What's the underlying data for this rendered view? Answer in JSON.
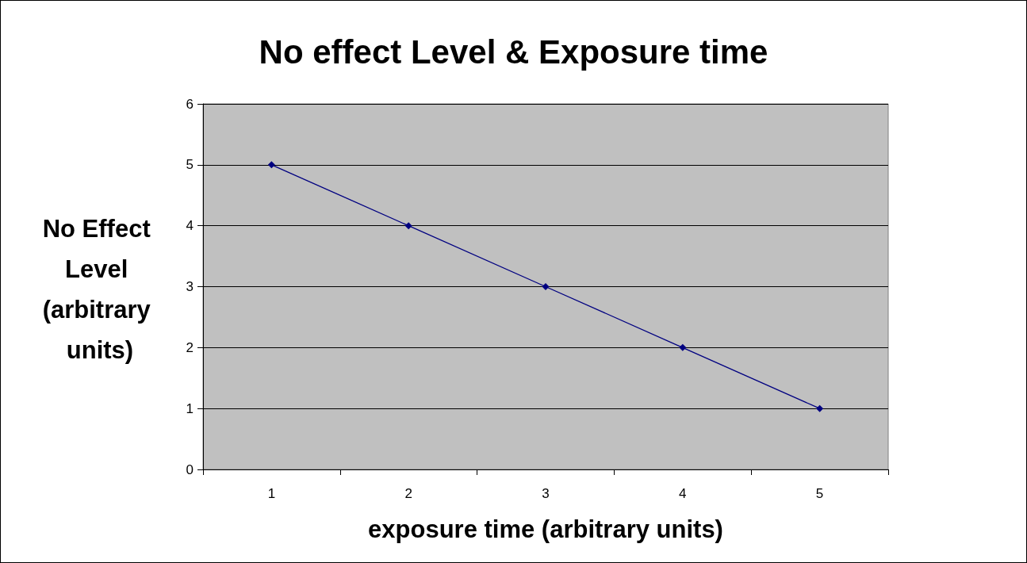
{
  "chart_data": {
    "type": "line",
    "title": "No effect Level & Exposure time",
    "xlabel": "exposure time (arbitrary units)",
    "ylabel": "No Effect Level (arbitrary units)",
    "categories": [
      "1",
      "2",
      "3",
      "4",
      "5"
    ],
    "series": [
      {
        "color": "#000080",
        "values": [
          5,
          4,
          3,
          2,
          1
        ]
      }
    ],
    "ylim": [
      0,
      6
    ],
    "yticks": [
      0,
      1,
      2,
      3,
      4,
      5,
      6
    ],
    "grid": "y",
    "marker": "diamond",
    "line_style": "solid"
  }
}
